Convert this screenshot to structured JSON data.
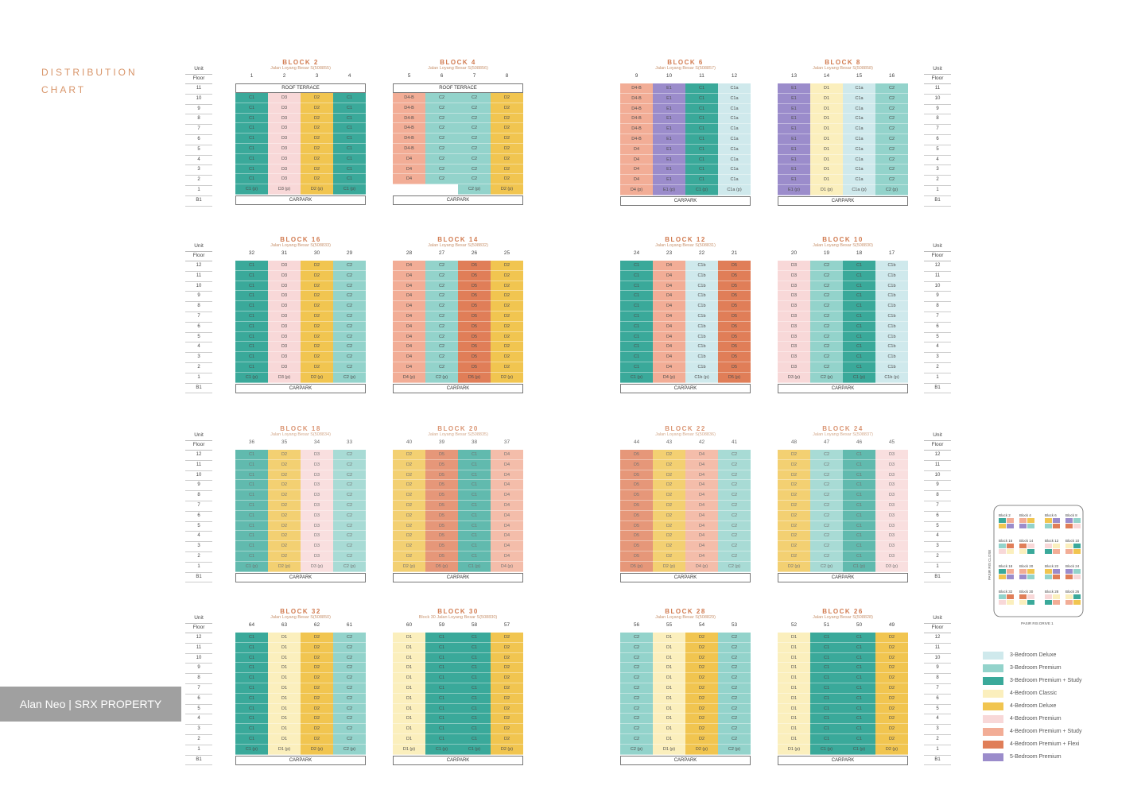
{
  "title": "DISTRIBUTION CHART",
  "watermark": "Alan Neo | SRX PROPERTY",
  "colors": {
    "3-Bedroom Deluxe": "#cfe9ec",
    "3-Bedroom Premium": "#93d3cb",
    "3-Bedroom Premium + Study": "#3aa99a",
    "4-Bedroom Classic": "#fbefbd",
    "4-Bedroom Deluxe": "#f1c550",
    "4-Bedroom Premium": "#f8d8d8",
    "4-Bedroom Premium + Study": "#f2ad96",
    "4-Bedroom Premium + Flexi": "#e07e58",
    "5-Bedroom Premium": "#9b8ccb"
  },
  "type_colors": {
    "C1": "#3aa99a",
    "C2": "#93d3cb",
    "C1a": "#cfe9ec",
    "C1b": "#cfe9ec",
    "D1": "#fbefbd",
    "D2": "#f1c550",
    "D3": "#f8d8d8",
    "D4": "#f2ad96",
    "D4-B": "#f2ad96",
    "D5": "#e07e58",
    "E1": "#9b8ccb"
  },
  "labels": {
    "unit": "Unit",
    "floor": "Floor",
    "roof": "ROOF TERRACE",
    "carpark": "CARPARK",
    "basement": "B1"
  },
  "floor_columns": [
    {
      "side": "left",
      "row": 0,
      "top": 92,
      "floors": [
        "11",
        "10",
        "9",
        "8",
        "7",
        "6",
        "5",
        "4",
        "3",
        "2",
        "1",
        "B1"
      ]
    },
    {
      "side": "right",
      "row": 0,
      "top": 92,
      "floors": [
        "11",
        "10",
        "9",
        "8",
        "7",
        "6",
        "5",
        "4",
        "3",
        "2",
        "1",
        "B1"
      ]
    },
    {
      "side": "left",
      "row": 1,
      "top": 316,
      "floors": [
        "12",
        "11",
        "10",
        "9",
        "8",
        "7",
        "6",
        "5",
        "4",
        "3",
        "2",
        "1",
        "B1"
      ]
    },
    {
      "side": "right",
      "row": 1,
      "top": 316,
      "floors": [
        "12",
        "11",
        "10",
        "9",
        "8",
        "7",
        "6",
        "5",
        "4",
        "3",
        "2",
        "1",
        "B1"
      ]
    },
    {
      "side": "left",
      "row": 2,
      "top": 555,
      "floors": [
        "12",
        "11",
        "10",
        "9",
        "8",
        "7",
        "6",
        "5",
        "4",
        "3",
        "2",
        "1",
        "B1"
      ]
    },
    {
      "side": "right",
      "row": 2,
      "top": 555,
      "floors": [
        "12",
        "11",
        "10",
        "9",
        "8",
        "7",
        "6",
        "5",
        "4",
        "3",
        "2",
        "1",
        "B1"
      ]
    },
    {
      "side": "left",
      "row": 3,
      "top": 783,
      "floors": [
        "12",
        "11",
        "10",
        "9",
        "8",
        "7",
        "6",
        "5",
        "4",
        "3",
        "2",
        "1",
        "B1"
      ]
    },
    {
      "side": "right",
      "row": 3,
      "top": 783,
      "floors": [
        "12",
        "11",
        "10",
        "9",
        "8",
        "7",
        "6",
        "5",
        "4",
        "3",
        "2",
        "1",
        "B1"
      ]
    }
  ],
  "blocks": [
    {
      "name": "BLOCK 2",
      "address": "Jalan Loyang Besar S(508855)",
      "units": [
        "1",
        "2",
        "3",
        "4"
      ],
      "floors": 11,
      "roof": true,
      "columns": [
        "C1",
        "D3",
        "D2",
        "C1"
      ],
      "ground": [
        "C1 (p)",
        "D3 (p)",
        "D2 (p)",
        "C1 (p)"
      ]
    },
    {
      "name": "BLOCK 4",
      "address": "Jalan Loyang Besar S(508856)",
      "units": [
        "5",
        "6",
        "7",
        "8"
      ],
      "floors": 11,
      "roof": true,
      "columns": [
        "D4-B",
        "C2",
        "C2",
        "D2"
      ],
      "ground": [
        "",
        "",
        "C2 (p)",
        "D2 (p)"
      ],
      "override": {
        "0": [
          "D4-B",
          "D4-B",
          "D4-B",
          "D4-B",
          "D4-B",
          "D4-B",
          "D4",
          "D4",
          "D4",
          "",
          ""
        ]
      }
    },
    {
      "name": "BLOCK 6",
      "address": "Jalan Loyang Besar S(508857)",
      "units": [
        "9",
        "10",
        "11",
        "12"
      ],
      "floors": 11,
      "roof": false,
      "columns": [
        "D4-B",
        "E1",
        "C1",
        "C1a"
      ],
      "ground": [
        "D4 (p)",
        "E1 (p)",
        "C1 (p)",
        "C1a (p)"
      ],
      "override": {
        "0": [
          "D4-B",
          "D4-B",
          "D4-B",
          "D4-B",
          "D4-B",
          "D4-B",
          "D4",
          "D4",
          "D4",
          "D4"
        ]
      }
    },
    {
      "name": "BLOCK 8",
      "address": "Jalan Loyang Besar S(508858)",
      "units": [
        "13",
        "14",
        "15",
        "16"
      ],
      "floors": 11,
      "roof": false,
      "columns": [
        "E1",
        "D1",
        "C1a",
        "C2"
      ],
      "ground": [
        "E1 (p)",
        "D1 (p)",
        "C1a (p)",
        "C2 (p)"
      ]
    },
    {
      "name": "BLOCK 16",
      "address": "Jalan Loyang Besar S(508833)",
      "units": [
        "32",
        "31",
        "30",
        "29"
      ],
      "floors": 12,
      "roof": false,
      "columns": [
        "C1",
        "D3",
        "D2",
        "C2"
      ],
      "ground": [
        "C1 (p)",
        "D3 (p)",
        "D2 (p)",
        "C2 (p)"
      ]
    },
    {
      "name": "BLOCK 14",
      "address": "Jalan Loyang Besar S(508832)",
      "units": [
        "28",
        "27",
        "26",
        "25"
      ],
      "floors": 12,
      "roof": false,
      "columns": [
        "D4",
        "C2",
        "D5",
        "D2"
      ],
      "ground": [
        "D4 (p)",
        "C2 (p)",
        "D5 (p)",
        "D2 (p)"
      ]
    },
    {
      "name": "BLOCK 12",
      "address": "Jalan Loyang Besar S(508831)",
      "units": [
        "24",
        "23",
        "22",
        "21"
      ],
      "floors": 12,
      "roof": false,
      "columns": [
        "C1",
        "D4",
        "C1b",
        "D5"
      ],
      "ground": [
        "C1 (p)",
        "D4 (p)",
        "C1b (p)",
        "D5 (p)"
      ]
    },
    {
      "name": "BLOCK 10",
      "address": "Jalan Loyang Besar S(508830)",
      "units": [
        "20",
        "19",
        "18",
        "17"
      ],
      "floors": 12,
      "roof": false,
      "columns": [
        "D3",
        "C2",
        "C1",
        "C1b"
      ],
      "ground": [
        "D3 (p)",
        "C2 (p)",
        "C1 (p)",
        "C1b (p)"
      ]
    },
    {
      "name": "BLOCK 18",
      "address": "Jalan Loyang Besar S(508834)",
      "units": [
        "36",
        "35",
        "34",
        "33"
      ],
      "floors": 12,
      "roof": false,
      "faded": true,
      "columns": [
        "C1",
        "D2",
        "D3",
        "C2"
      ],
      "ground": [
        "C1 (p)",
        "D2 (p)",
        "D3 (p)",
        "C2 (p)"
      ]
    },
    {
      "name": "BLOCK 20",
      "address": "Jalan Loyang Besar S(508835)",
      "units": [
        "40",
        "39",
        "38",
        "37"
      ],
      "floors": 12,
      "roof": false,
      "faded": true,
      "columns": [
        "D2",
        "D5",
        "C1",
        "D4"
      ],
      "ground": [
        "D2 (p)",
        "D5 (p)",
        "C1 (p)",
        "D4 (p)"
      ]
    },
    {
      "name": "BLOCK 22",
      "address": "Jalan Loyang Besar S(508836)",
      "units": [
        "44",
        "43",
        "42",
        "41"
      ],
      "floors": 12,
      "roof": false,
      "faded": true,
      "columns": [
        "D5",
        "D2",
        "D4",
        "C2"
      ],
      "ground": [
        "D5 (p)",
        "D2 (p)",
        "D4 (p)",
        "C2 (p)"
      ]
    },
    {
      "name": "BLOCK 24",
      "address": "Jalan Loyang Besar S(508837)",
      "units": [
        "48",
        "47",
        "46",
        "45"
      ],
      "floors": 12,
      "roof": false,
      "faded": true,
      "columns": [
        "D2",
        "C2",
        "C1",
        "D3"
      ],
      "ground": [
        "D2 (p)",
        "C2 (p)",
        "C1 (p)",
        "D3 (p)"
      ]
    },
    {
      "name": "BLOCK 32",
      "address": "Jalan Loyang Besar S(508850)",
      "units": [
        "64",
        "63",
        "62",
        "61"
      ],
      "floors": 12,
      "roof": false,
      "columns": [
        "C1",
        "D1",
        "D2",
        "C2"
      ],
      "ground": [
        "C1 (p)",
        "D1 (p)",
        "D2 (p)",
        "C2 (p)"
      ]
    },
    {
      "name": "BLOCK 30",
      "address": "Block 30 Jalan Loyang Besar S(508830)",
      "units": [
        "60",
        "59",
        "58",
        "57"
      ],
      "floors": 12,
      "roof": false,
      "columns": [
        "D1",
        "C1",
        "C1",
        "D2"
      ],
      "ground": [
        "D1 (p)",
        "C1 (p)",
        "C1 (p)",
        "D2 (p)"
      ]
    },
    {
      "name": "BLOCK 28",
      "address": "Jalan Loyang Besar S(508829)",
      "units": [
        "56",
        "55",
        "54",
        "53"
      ],
      "floors": 12,
      "roof": false,
      "columns": [
        "C2",
        "D1",
        "D2",
        "C2"
      ],
      "ground": [
        "C2 (p)",
        "D1 (p)",
        "D2 (p)",
        "C2 (p)"
      ]
    },
    {
      "name": "BLOCK 26",
      "address": "Jalan Loyang Besar S(508828)",
      "units": [
        "52",
        "51",
        "50",
        "49"
      ],
      "floors": 12,
      "roof": false,
      "columns": [
        "D1",
        "C1",
        "C1",
        "D2"
      ],
      "ground": [
        "D1 (p)",
        "C1 (p)",
        "C1 (p)",
        "D2 (p)"
      ]
    }
  ],
  "legend": [
    {
      "label": "3-Bedroom Deluxe",
      "color": "#cfe9ec"
    },
    {
      "label": "3-Bedroom Premium",
      "color": "#93d3cb"
    },
    {
      "label": "3-Bedroom Premium + Study",
      "color": "#3aa99a"
    },
    {
      "label": "4-Bedroom Classic",
      "color": "#fbefbd"
    },
    {
      "label": "4-Bedroom Deluxe",
      "color": "#f1c550"
    },
    {
      "label": "4-Bedroom Premium",
      "color": "#f8d8d8"
    },
    {
      "label": "4-Bedroom Premium + Study",
      "color": "#f2ad96"
    },
    {
      "label": "4-Bedroom Premium + Flexi",
      "color": "#e07e58"
    },
    {
      "label": "5-Bedroom Premium",
      "color": "#9b8ccb"
    }
  ],
  "site_map": {
    "blocks": [
      "Block 2",
      "Block 4",
      "Block 6",
      "Block 8",
      "Block 16",
      "Block 14",
      "Block 12",
      "Block 10",
      "Block 18",
      "Block 20",
      "Block 22",
      "Block 24",
      "Block 32",
      "Block 30",
      "Block 28",
      "Block 26"
    ],
    "roads": [
      "PASIR RIS CLOSE",
      "PASIR RIS DRIVE 1"
    ]
  }
}
